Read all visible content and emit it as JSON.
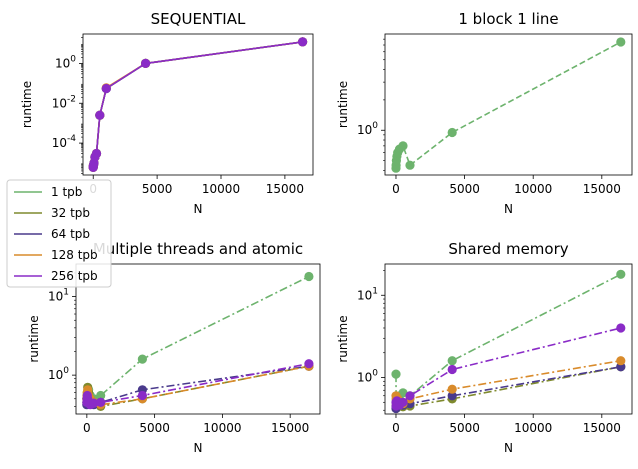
{
  "legend": {
    "placement": "left-middle",
    "entries": [
      {
        "label": "1 tpb",
        "color": "#6db36d"
      },
      {
        "label": "32 tpb",
        "color": "#7f8a2e"
      },
      {
        "label": "64 tpb",
        "color": "#4a3a8c"
      },
      {
        "label": "128 tpb",
        "color": "#d98b2b"
      },
      {
        "label": "256 tpb",
        "color": "#8a2bc7"
      }
    ]
  },
  "chart_data": [
    {
      "type": "line",
      "title": "SEQUENTIAL",
      "xlabel": "N",
      "ylabel": "runtime",
      "yscale": "log",
      "xlim": [
        -800,
        17200
      ],
      "ylim": [
        2.5e-06,
        30
      ],
      "xticks": [
        0,
        5000,
        10000,
        15000
      ],
      "xtick_labels": [
        "0",
        "5000",
        "10000",
        "15000"
      ],
      "yticks": [
        0.0001,
        0.01,
        1
      ],
      "ytick_labels": [
        "10^-4",
        "10^-2",
        "10^0"
      ],
      "line_style": "solid",
      "series": [
        {
          "name": "1 tpb",
          "x": [
            0,
            10,
            32,
            64,
            128,
            256,
            512,
            1024,
            4096,
            16384
          ],
          "y": [
            6e-06,
            7e-06,
            8e-06,
            1e-05,
            2e-05,
            3e-05,
            0.0025,
            0.055,
            1.0,
            12.0
          ]
        },
        {
          "name": "32 tpb",
          "x": [
            0,
            10,
            32,
            64,
            128,
            256,
            512,
            1024,
            4096,
            16384
          ],
          "y": [
            6e-06,
            7e-06,
            8e-06,
            1e-05,
            2e-05,
            3e-05,
            0.0025,
            0.055,
            1.0,
            12.0
          ]
        },
        {
          "name": "64 tpb",
          "x": [
            0,
            10,
            32,
            64,
            128,
            256,
            512,
            1024,
            4096,
            16384
          ],
          "y": [
            6e-06,
            7e-06,
            8e-06,
            1e-05,
            2e-05,
            3e-05,
            0.0025,
            0.055,
            1.0,
            12.0
          ]
        },
        {
          "name": "128 tpb",
          "x": [
            0,
            10,
            32,
            64,
            128,
            256,
            512,
            1024,
            4096,
            16384
          ],
          "y": [
            6e-06,
            7e-06,
            8e-06,
            1e-05,
            2e-05,
            3e-05,
            0.0025,
            0.06,
            1.0,
            12.0
          ]
        },
        {
          "name": "256 tpb",
          "x": [
            0,
            10,
            32,
            64,
            128,
            256,
            512,
            1024,
            4096,
            16384
          ],
          "y": [
            6e-06,
            7e-06,
            8e-06,
            1e-05,
            2e-05,
            3e-05,
            0.0025,
            0.055,
            1.0,
            12.0
          ]
        }
      ]
    },
    {
      "type": "line",
      "title": "1 block 1 line",
      "xlabel": "N",
      "ylabel": "runtime",
      "yscale": "log",
      "xlim": [
        -800,
        17200
      ],
      "ylim": [
        0.36,
        9.0
      ],
      "xticks": [
        0,
        5000,
        10000,
        15000
      ],
      "xtick_labels": [
        "0",
        "5000",
        "10000",
        "15000"
      ],
      "yticks": [
        1
      ],
      "ytick_labels": [
        "10^0"
      ],
      "line_style": "dashed",
      "series": [
        {
          "name": "1 tpb",
          "x": [
            0,
            10,
            32,
            64,
            128,
            256,
            512,
            1024,
            4096,
            16384
          ],
          "y": [
            0.42,
            0.45,
            0.5,
            0.55,
            0.6,
            0.65,
            0.7,
            0.45,
            0.95,
            7.5
          ]
        }
      ]
    },
    {
      "type": "line",
      "title": "Multiple threads and atomic",
      "xlabel": "N",
      "ylabel": "runtime",
      "yscale": "log",
      "xlim": [
        -800,
        17200
      ],
      "ylim": [
        0.32,
        26
      ],
      "xticks": [
        0,
        5000,
        10000,
        15000
      ],
      "xtick_labels": [
        "0",
        "5000",
        "10000",
        "15000"
      ],
      "yticks": [
        1,
        10
      ],
      "ytick_labels": [
        "10^0",
        "10^1"
      ],
      "line_style": "dashdot",
      "series": [
        {
          "name": "1 tpb",
          "x": [
            0,
            10,
            32,
            64,
            128,
            256,
            512,
            1024,
            4096,
            16384
          ],
          "y": [
            0.45,
            0.5,
            0.55,
            0.6,
            0.65,
            0.55,
            0.5,
            0.55,
            1.6,
            18.0
          ]
        },
        {
          "name": "32 tpb",
          "x": [
            0,
            10,
            32,
            64,
            128,
            256,
            512,
            1024,
            4096,
            16384
          ],
          "y": [
            0.5,
            0.55,
            0.6,
            0.7,
            0.6,
            0.5,
            0.45,
            0.4,
            0.5,
            1.3
          ]
        },
        {
          "name": "64 tpb",
          "x": [
            0,
            10,
            32,
            64,
            128,
            256,
            512,
            1024,
            4096,
            16384
          ],
          "y": [
            0.42,
            0.45,
            0.5,
            0.55,
            0.5,
            0.45,
            0.42,
            0.45,
            0.65,
            1.3
          ]
        },
        {
          "name": "128 tpb",
          "x": [
            0,
            10,
            32,
            64,
            128,
            256,
            512,
            1024,
            4096,
            16384
          ],
          "y": [
            0.5,
            0.55,
            0.6,
            0.65,
            0.55,
            0.5,
            0.45,
            0.42,
            0.5,
            1.3
          ]
        },
        {
          "name": "256 tpb",
          "x": [
            0,
            10,
            32,
            64,
            128,
            256,
            512,
            1024,
            4096,
            16384
          ],
          "y": [
            0.45,
            0.5,
            0.55,
            0.5,
            0.45,
            0.42,
            0.44,
            0.45,
            0.55,
            1.4
          ]
        }
      ]
    },
    {
      "type": "line",
      "title": "Shared memory",
      "xlabel": "N",
      "ylabel": "runtime",
      "yscale": "log",
      "xlim": [
        -800,
        17200
      ],
      "ylim": [
        0.36,
        24
      ],
      "xticks": [
        0,
        5000,
        10000,
        15000
      ],
      "xtick_labels": [
        "0",
        "5000",
        "10000",
        "15000"
      ],
      "yticks": [
        1,
        10
      ],
      "ytick_labels": [
        "10^0",
        "10^1"
      ],
      "line_style": "dashdot",
      "series": [
        {
          "name": "1 tpb",
          "x": [
            0,
            10,
            32,
            64,
            128,
            256,
            512,
            1024,
            4096,
            16384
          ],
          "y": [
            1.1,
            0.5,
            0.45,
            0.5,
            0.55,
            0.6,
            0.65,
            0.6,
            1.6,
            18.0
          ]
        },
        {
          "name": "32 tpb",
          "x": [
            0,
            10,
            32,
            64,
            128,
            256,
            512,
            1024,
            4096,
            16384
          ],
          "y": [
            0.45,
            0.42,
            0.44,
            0.46,
            0.48,
            0.45,
            0.44,
            0.45,
            0.55,
            1.35
          ]
        },
        {
          "name": "64 tpb",
          "x": [
            0,
            10,
            32,
            64,
            128,
            256,
            512,
            1024,
            4096,
            16384
          ],
          "y": [
            0.42,
            0.44,
            0.46,
            0.48,
            0.5,
            0.47,
            0.46,
            0.48,
            0.6,
            1.35
          ]
        },
        {
          "name": "128 tpb",
          "x": [
            0,
            10,
            32,
            64,
            128,
            256,
            512,
            1024,
            4096,
            16384
          ],
          "y": [
            0.6,
            0.55,
            0.5,
            0.52,
            0.55,
            0.5,
            0.48,
            0.55,
            0.72,
            1.6
          ]
        },
        {
          "name": "256 tpb",
          "x": [
            0,
            10,
            32,
            64,
            128,
            256,
            512,
            1024,
            4096,
            16384
          ],
          "y": [
            0.5,
            0.45,
            0.48,
            0.52,
            0.5,
            0.46,
            0.5,
            0.6,
            1.25,
            4.0
          ]
        }
      ]
    }
  ]
}
